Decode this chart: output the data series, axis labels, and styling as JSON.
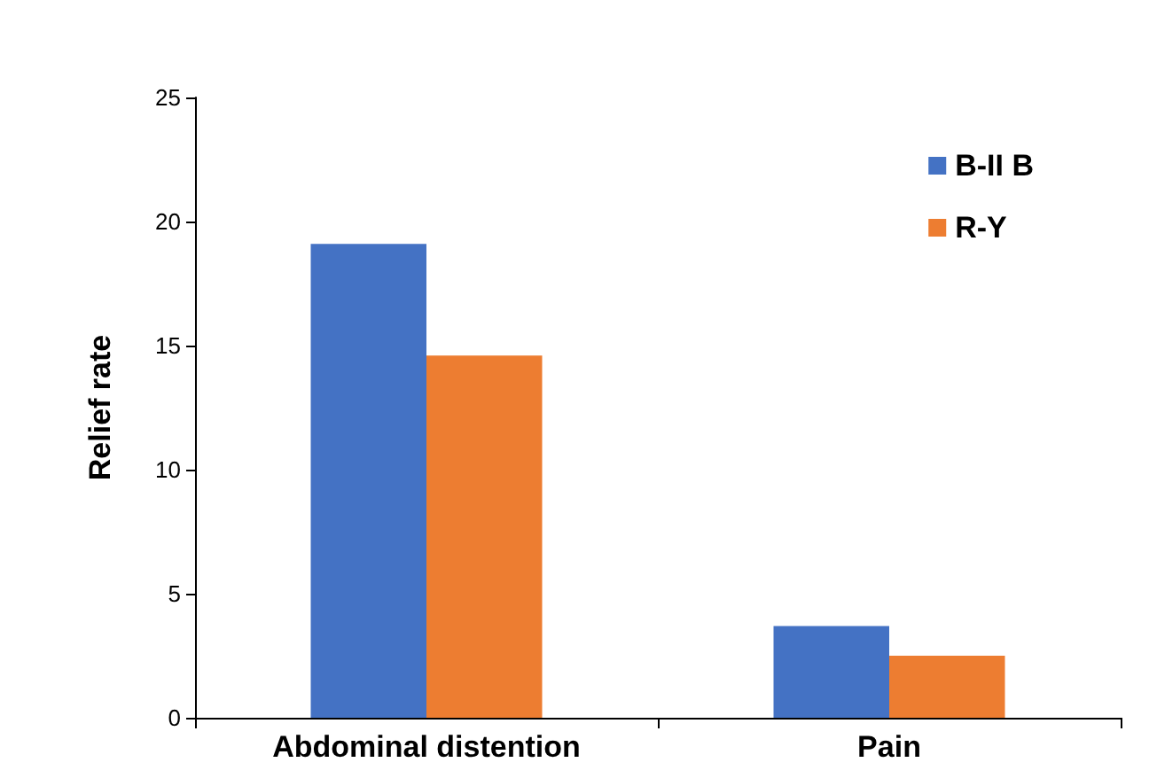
{
  "chart_data": {
    "type": "bar",
    "ylabel": "Relief rate",
    "categories": [
      "Abdominal distention",
      "Pain"
    ],
    "series": [
      {
        "name": "B-II B",
        "color": "#4472c4",
        "values": [
          19.1,
          3.7
        ]
      },
      {
        "name": "R-Y",
        "color": "#ed7d31",
        "values": [
          14.6,
          2.5
        ]
      }
    ],
    "ylim": [
      0,
      25
    ],
    "yticks": [
      0,
      5,
      10,
      15,
      20,
      25
    ],
    "grid": false,
    "legend": "top right"
  }
}
